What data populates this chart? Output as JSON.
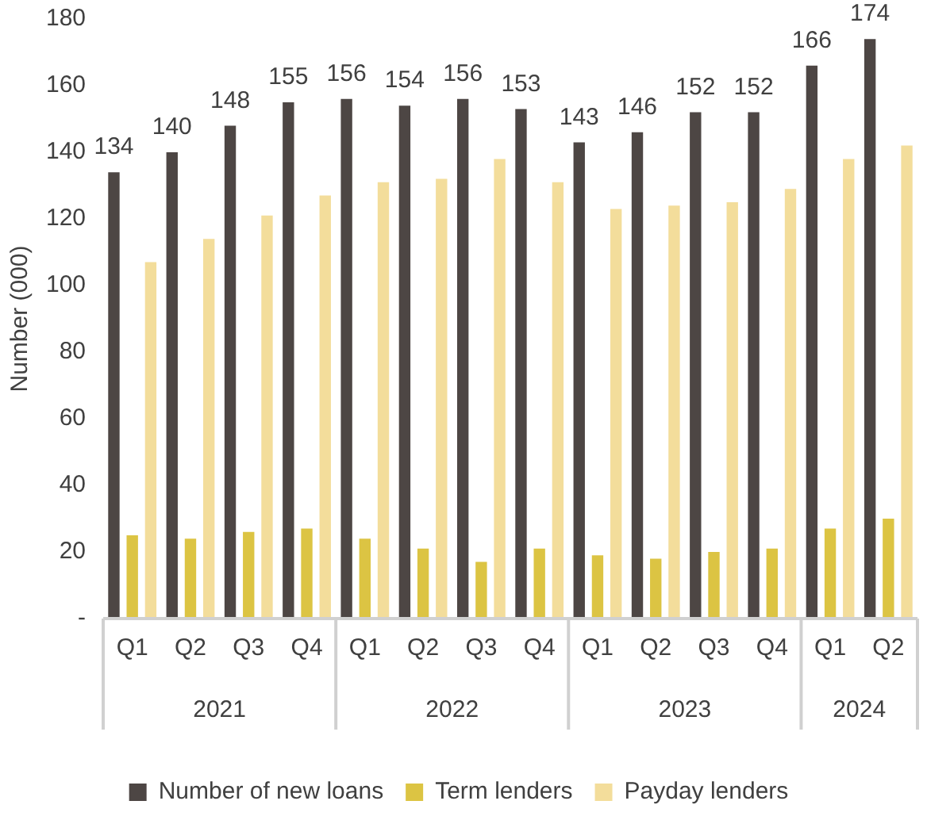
{
  "chart_data": {
    "type": "bar",
    "ylabel": "Number (000)",
    "categories": [
      "Q1",
      "Q2",
      "Q3",
      "Q4",
      "Q1",
      "Q2",
      "Q3",
      "Q4",
      "Q1",
      "Q2",
      "Q3",
      "Q4",
      "Q1",
      "Q2"
    ],
    "series": [
      {
        "name": "Number of new loans",
        "color": "#4d4644",
        "values": [
          134,
          140,
          148,
          155,
          156,
          154,
          156,
          153,
          143,
          146,
          152,
          152,
          166,
          174
        ],
        "value_labels": [
          "134",
          "140",
          "148",
          "155",
          "156",
          "154",
          "156",
          "153",
          "143",
          "146",
          "152",
          "152",
          "166",
          "174"
        ]
      },
      {
        "name": "Term lenders",
        "color": "#dcc443",
        "values": [
          25,
          24,
          26,
          27,
          24,
          21,
          17,
          21,
          19,
          18,
          20,
          21,
          27,
          30
        ]
      },
      {
        "name": "Payday lenders",
        "color": "#f3dd9b",
        "values": [
          107,
          114,
          121,
          127,
          131,
          132,
          138,
          131,
          123,
          124,
          125,
          129,
          138,
          142
        ]
      }
    ],
    "ylim": [
      0,
      180
    ],
    "yticks": [
      {
        "value": 0,
        "label": "-"
      },
      20,
      40,
      60,
      80,
      100,
      120,
      140,
      160,
      180
    ],
    "grid": false,
    "legend": "bottom",
    "annotations": [
      "2021",
      "2022",
      "2023",
      "2024"
    ]
  }
}
